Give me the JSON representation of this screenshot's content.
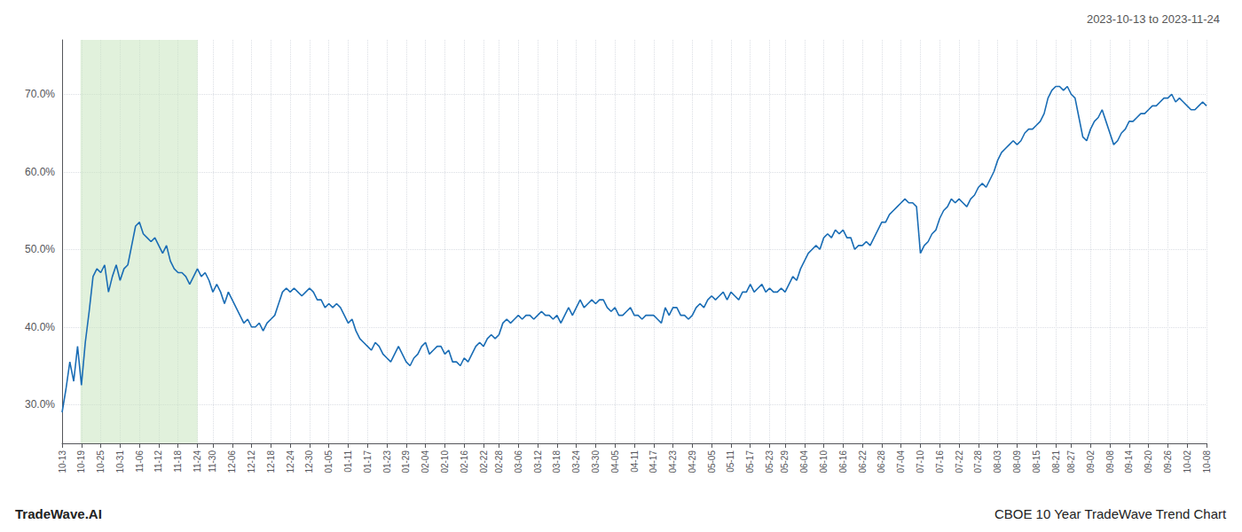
{
  "chart_data": {
    "type": "line",
    "title": "2023-10-13 to 2023-11-24",
    "annotations": [
      "TradeWave.AI",
      "CBOE 10 Year TradeWave Trend Chart"
    ],
    "color": "#1a6db5",
    "grid": true,
    "ylim": [
      25,
      77
    ],
    "yticks": [
      {
        "value": 30,
        "label": "30.0%"
      },
      {
        "value": 40,
        "label": "40.0%"
      },
      {
        "value": 50,
        "label": "50.0%"
      },
      {
        "value": 60,
        "label": "60.0%"
      },
      {
        "value": 70,
        "label": "70.0%"
      }
    ],
    "highlight": {
      "start": 4.752,
      "end": 35.046,
      "color": "#c8e6c0"
    },
    "categories": [
      "10-13",
      null,
      null,
      null,
      null,
      "10-19",
      null,
      null,
      null,
      null,
      "10-25",
      null,
      null,
      null,
      null,
      "10-31",
      null,
      null,
      null,
      null,
      "11-06",
      null,
      null,
      null,
      null,
      "11-12",
      null,
      null,
      null,
      null,
      "11-18",
      null,
      null,
      null,
      null,
      "11-24",
      null,
      null,
      null,
      "11-30",
      null,
      null,
      null,
      null,
      "12-06",
      null,
      null,
      null,
      null,
      "12-12",
      null,
      null,
      null,
      null,
      "12-18",
      null,
      null,
      null,
      null,
      "12-24",
      null,
      null,
      null,
      null,
      "12-30",
      null,
      null,
      null,
      null,
      "01-05",
      null,
      null,
      null,
      null,
      "01-11",
      null,
      null,
      null,
      null,
      "01-17",
      null,
      null,
      null,
      null,
      "01-23",
      null,
      null,
      null,
      null,
      "01-29",
      null,
      null,
      null,
      null,
      "02-04",
      null,
      null,
      null,
      null,
      "02-10",
      null,
      null,
      null,
      null,
      "02-16",
      null,
      null,
      null,
      null,
      "02-22",
      null,
      null,
      null,
      "02-28",
      null,
      null,
      null,
      null,
      "03-06",
      null,
      null,
      null,
      null,
      "03-12",
      null,
      null,
      null,
      null,
      "03-18",
      null,
      null,
      null,
      null,
      "03-24",
      null,
      null,
      null,
      null,
      "03-30",
      null,
      null,
      null,
      null,
      "04-05",
      null,
      null,
      null,
      null,
      "04-11",
      null,
      null,
      null,
      null,
      "04-17",
      null,
      null,
      null,
      null,
      "04-23",
      null,
      null,
      null,
      null,
      "04-29",
      null,
      null,
      null,
      null,
      "05-05",
      null,
      null,
      null,
      null,
      "05-11",
      null,
      null,
      null,
      null,
      "05-17",
      null,
      null,
      null,
      null,
      "05-23",
      null,
      null,
      null,
      "05-29",
      null,
      null,
      null,
      null,
      "06-04",
      null,
      null,
      null,
      null,
      "06-10",
      null,
      null,
      null,
      null,
      "06-16",
      null,
      null,
      null,
      null,
      "06-22",
      null,
      null,
      null,
      null,
      "06-28",
      null,
      null,
      null,
      null,
      "07-04",
      null,
      null,
      null,
      null,
      "07-10",
      null,
      null,
      null,
      null,
      "07-16",
      null,
      null,
      null,
      null,
      "07-22",
      null,
      null,
      null,
      null,
      "07-28",
      null,
      null,
      null,
      null,
      "08-03",
      null,
      null,
      null,
      null,
      "08-09",
      null,
      null,
      null,
      null,
      "08-15",
      null,
      null,
      null,
      null,
      "08-21",
      null,
      null,
      null,
      "08-27",
      null,
      null,
      null,
      null,
      "09-02",
      null,
      null,
      null,
      null,
      "09-08",
      null,
      null,
      null,
      null,
      "09-14",
      null,
      null,
      null,
      null,
      "09-20",
      null,
      null,
      null,
      null,
      "09-26",
      null,
      null,
      null,
      null,
      "10-02",
      null,
      null,
      null,
      null,
      "10-08"
    ],
    "values": [
      29.0,
      32.0,
      35.5,
      33.0,
      37.5,
      32.5,
      38.0,
      42.0,
      46.5,
      47.5,
      47.0,
      48.0,
      44.5,
      46.5,
      48.0,
      46.0,
      47.5,
      48.0,
      50.5,
      53.0,
      53.5,
      52.0,
      51.5,
      51.0,
      51.5,
      50.5,
      49.5,
      50.5,
      48.5,
      47.5,
      47.0,
      47.0,
      46.5,
      45.5,
      46.5,
      47.5,
      46.5,
      47.0,
      46.0,
      44.5,
      45.5,
      44.5,
      43.0,
      44.5,
      43.5,
      42.5,
      41.5,
      40.5,
      41.0,
      40.0,
      40.0,
      40.5,
      39.5,
      40.5,
      41.0,
      41.5,
      43.0,
      44.5,
      45.0,
      44.5,
      45.0,
      44.5,
      44.0,
      44.5,
      45.0,
      44.5,
      43.5,
      43.5,
      42.5,
      43.0,
      42.5,
      43.0,
      42.5,
      41.5,
      40.5,
      41.0,
      39.5,
      38.5,
      38.0,
      37.5,
      37.0,
      38.0,
      37.5,
      36.5,
      36.0,
      35.5,
      36.5,
      37.5,
      36.5,
      35.5,
      35.0,
      36.0,
      36.5,
      37.5,
      38.0,
      36.5,
      37.0,
      37.5,
      37.5,
      36.5,
      37.0,
      35.5,
      35.5,
      35.0,
      36.0,
      35.5,
      36.5,
      37.5,
      38.0,
      37.5,
      38.5,
      39.0,
      38.5,
      39.0,
      40.5,
      41.0,
      40.5,
      41.0,
      41.5,
      41.0,
      41.5,
      41.5,
      41.0,
      41.5,
      42.0,
      41.5,
      41.5,
      41.0,
      41.5,
      40.5,
      41.5,
      42.5,
      41.5,
      42.5,
      43.5,
      42.5,
      43.0,
      43.5,
      43.0,
      43.5,
      43.5,
      42.5,
      42.0,
      42.5,
      41.5,
      41.5,
      42.0,
      42.5,
      41.5,
      41.5,
      41.0,
      41.5,
      41.5,
      41.5,
      41.0,
      40.5,
      42.5,
      41.5,
      42.5,
      42.5,
      41.5,
      41.5,
      41.0,
      41.5,
      42.5,
      43.0,
      42.5,
      43.5,
      44.0,
      43.5,
      44.0,
      44.5,
      43.5,
      44.5,
      44.0,
      43.5,
      44.5,
      44.5,
      45.5,
      44.5,
      45.0,
      45.5,
      44.5,
      45.0,
      44.5,
      44.5,
      45.0,
      44.5,
      45.5,
      46.5,
      46.0,
      47.5,
      48.5,
      49.5,
      50.0,
      50.5,
      50.0,
      51.5,
      52.0,
      51.5,
      52.5,
      52.0,
      52.5,
      51.5,
      51.5,
      50.0,
      50.5,
      50.5,
      51.0,
      50.5,
      51.5,
      52.5,
      53.5,
      53.5,
      54.5,
      55.0,
      55.5,
      56.0,
      56.5,
      56.0,
      56.0,
      55.5,
      49.5,
      50.5,
      51.0,
      52.0,
      52.5,
      54.0,
      55.0,
      55.5,
      56.5,
      56.0,
      56.5,
      56.0,
      55.5,
      56.5,
      57.0,
      58.0,
      58.5,
      58.0,
      59.0,
      60.0,
      61.5,
      62.5,
      63.0,
      63.5,
      64.0,
      63.5,
      64.0,
      65.0,
      65.5,
      65.5,
      66.0,
      66.5,
      67.5,
      69.5,
      70.5,
      71.0,
      71.0,
      70.5,
      71.0,
      70.0,
      69.5,
      67.0,
      64.5,
      64.0,
      65.5,
      66.5,
      67.0,
      68.0,
      66.5,
      65.0,
      63.5,
      64.0,
      65.0,
      65.5,
      66.5,
      66.5,
      67.0,
      67.5,
      67.5,
      68.0,
      68.5,
      68.5,
      69.0,
      69.5,
      69.5,
      70.0,
      69.0,
      69.5,
      69.0,
      68.5,
      68.0,
      68.0,
      68.5,
      69.0,
      68.5
    ]
  }
}
